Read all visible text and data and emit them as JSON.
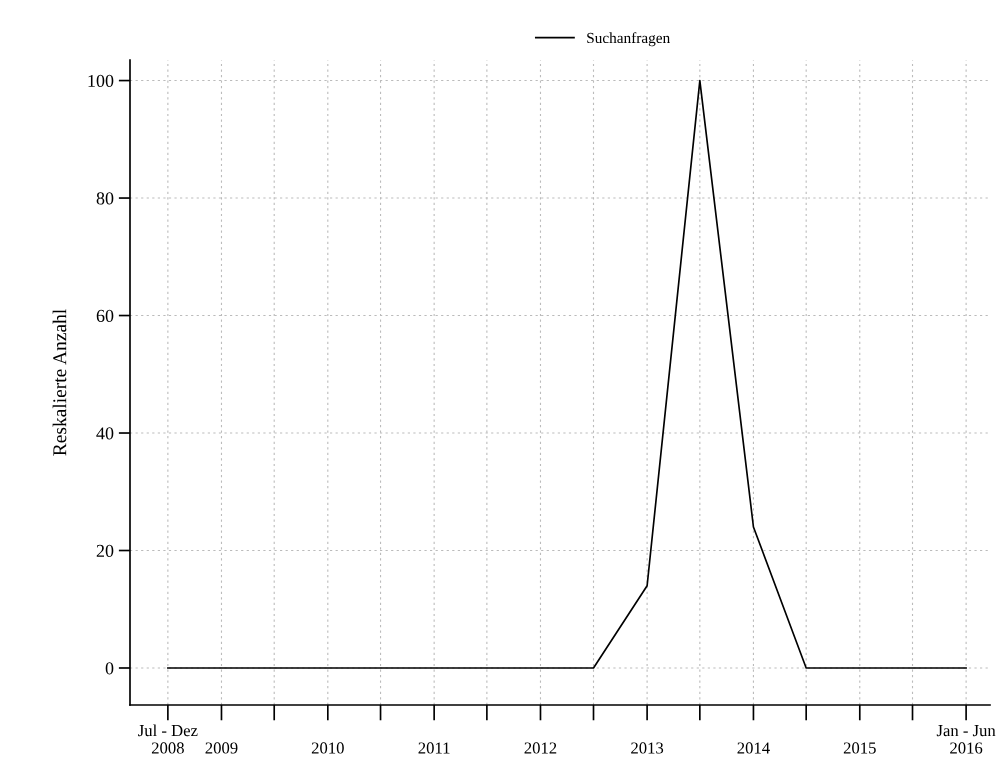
{
  "chart_data": {
    "type": "line",
    "ylabel": "Reskalierte Anzahl",
    "x": [
      "2008-07",
      "2009-01",
      "2009-07",
      "2010-01",
      "2010-07",
      "2011-01",
      "2011-07",
      "2012-01",
      "2012-07",
      "2013-01",
      "2013-07",
      "2014-01",
      "2014-07",
      "2015-01",
      "2015-07",
      "2016-01"
    ],
    "series": [
      {
        "name": "Suchanfragen",
        "color": "#000000",
        "values": [
          0,
          0,
          0,
          0,
          0,
          0,
          0,
          0,
          0,
          14,
          100,
          24,
          0,
          0,
          0,
          0
        ]
      }
    ],
    "xlim": [
      "2008-03-07",
      "2016-04-06"
    ],
    "xticks": [
      {
        "value": "2008-07",
        "label": "Jul - Dez\n2008"
      },
      {
        "value": "2009-01",
        "label": "2009"
      },
      {
        "value": "2009-07",
        "label": null
      },
      {
        "value": "2010-01",
        "label": "2010"
      },
      {
        "value": "2010-07",
        "label": null
      },
      {
        "value": "2011-01",
        "label": "2011"
      },
      {
        "value": "2011-07",
        "label": null
      },
      {
        "value": "2012-01",
        "label": "2012"
      },
      {
        "value": "2012-07",
        "label": null
      },
      {
        "value": "2013-01",
        "label": "2013"
      },
      {
        "value": "2013-07",
        "label": null
      },
      {
        "value": "2014-01",
        "label": "2014"
      },
      {
        "value": "2014-07",
        "label": null
      },
      {
        "value": "2015-01",
        "label": "2015"
      },
      {
        "value": "2015-07",
        "label": null
      },
      {
        "value": "2016-01",
        "label": "Jan - Jun\n2016"
      }
    ],
    "ylim": [
      -6.3,
      103.5
    ],
    "yticks": [
      0,
      20,
      40,
      60,
      80,
      100
    ],
    "grid": true,
    "legend": "top",
    "marker": "none",
    "line_style": "solid"
  }
}
